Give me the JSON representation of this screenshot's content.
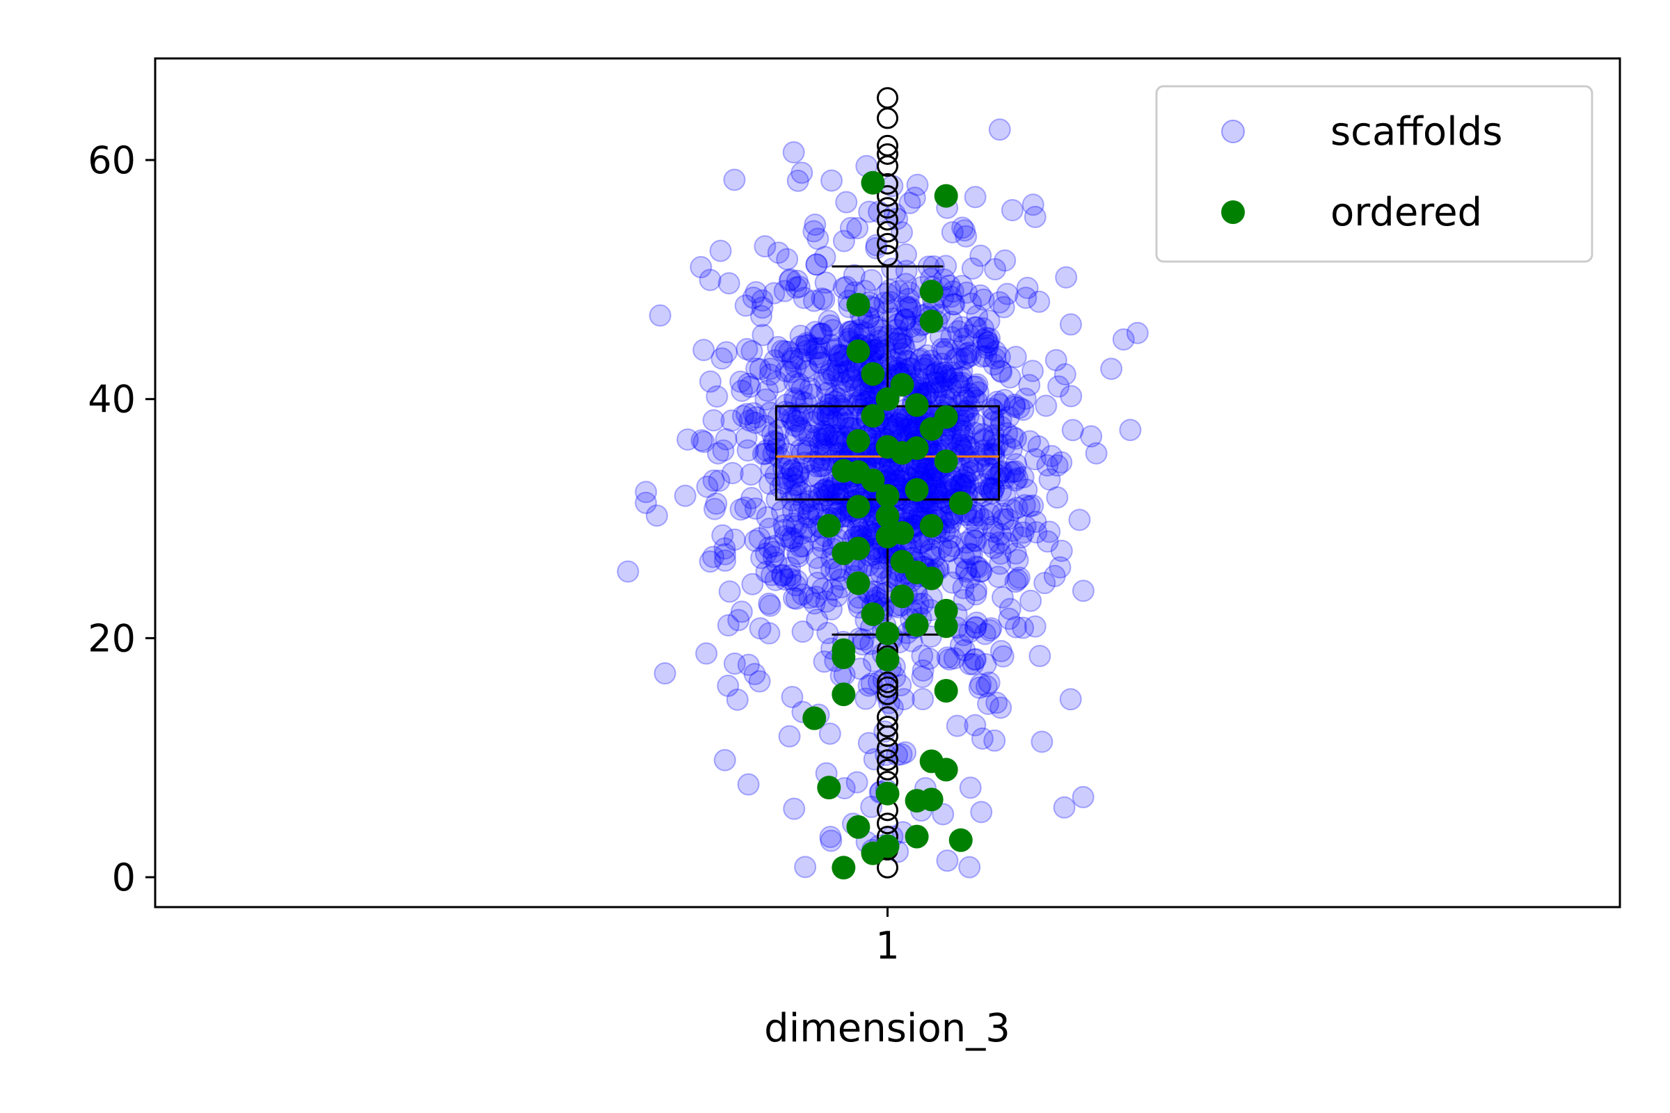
{
  "chart_data": {
    "type": "scatter",
    "xlabel": "dimension_3",
    "ylabel": "",
    "x_ticks": [
      "1"
    ],
    "y_ticks": [
      0,
      20,
      40,
      60
    ],
    "ylim": [
      -2.5,
      68.5
    ],
    "xlim": [
      0.5,
      1.5
    ],
    "grid": false,
    "legend": {
      "placement": "top-right",
      "entries": [
        {
          "label": "scaffolds",
          "color": "#0000ff"
        },
        {
          "label": "ordered",
          "color": "#008000"
        }
      ]
    },
    "boxplot": {
      "x": 1,
      "q1": 31.6,
      "median": 35.2,
      "q3": 39.4,
      "whisker_low": 20.3,
      "whisker_high": 51.1,
      "box_color": "#000000",
      "median_color": "#ff7f0e",
      "fliers": [
        0.8,
        2.3,
        3.4,
        4.5,
        5.6,
        7.0,
        8.0,
        9.0,
        9.8,
        10.8,
        11.8,
        12.6,
        13.4,
        15.3,
        15.9,
        16.3,
        18.5,
        19.0,
        52.0,
        53.0,
        54.0,
        55.0,
        56.0,
        57.0,
        58.0,
        59.5,
        60.5,
        61.2,
        63.5,
        65.2
      ]
    },
    "series": [
      {
        "name": "scaffolds",
        "color": "#0000ff",
        "count": 1500,
        "distribution": {
          "x_center": 1,
          "x_jitter": 0.07,
          "y_mean": 35.2,
          "y_sd": 8.5,
          "y_min": 0.8,
          "y_max": 65.2
        }
      },
      {
        "name": "ordered",
        "color": "#008000",
        "points": [
          [
            0.99,
            58.1
          ],
          [
            1.04,
            57.0
          ],
          [
            1.03,
            49.0
          ],
          [
            0.98,
            47.9
          ],
          [
            1.03,
            46.5
          ],
          [
            0.98,
            44.0
          ],
          [
            0.99,
            42.1
          ],
          [
            1.01,
            41.2
          ],
          [
            1.0,
            40.0
          ],
          [
            1.02,
            39.5
          ],
          [
            1.04,
            38.5
          ],
          [
            1.03,
            37.5
          ],
          [
            0.98,
            36.5
          ],
          [
            1.0,
            36.0
          ],
          [
            1.01,
            35.5
          ],
          [
            1.04,
            34.8
          ],
          [
            0.97,
            34.0
          ],
          [
            0.99,
            33.2
          ],
          [
            1.02,
            32.4
          ],
          [
            1.05,
            31.3
          ],
          [
            0.98,
            31.0
          ],
          [
            1.0,
            30.2
          ],
          [
            0.96,
            29.4
          ],
          [
            1.03,
            29.4
          ],
          [
            1.0,
            28.5
          ],
          [
            0.98,
            27.5
          ],
          [
            0.97,
            27.1
          ],
          [
            1.01,
            26.4
          ],
          [
            1.02,
            25.5
          ],
          [
            0.98,
            24.6
          ],
          [
            1.01,
            23.5
          ],
          [
            0.99,
            22.0
          ],
          [
            1.04,
            22.3
          ],
          [
            1.02,
            21.1
          ],
          [
            1.04,
            21.0
          ],
          [
            1.0,
            20.4
          ],
          [
            0.97,
            19.0
          ],
          [
            0.97,
            18.4
          ],
          [
            1.0,
            18.2
          ],
          [
            1.04,
            15.6
          ],
          [
            0.97,
            15.3
          ],
          [
            0.95,
            13.3
          ],
          [
            1.03,
            9.7
          ],
          [
            1.04,
            9.0
          ],
          [
            0.96,
            7.5
          ],
          [
            1.0,
            7.0
          ],
          [
            1.02,
            6.4
          ],
          [
            1.03,
            6.5
          ],
          [
            0.98,
            4.2
          ],
          [
            1.02,
            3.4
          ],
          [
            1.0,
            2.6
          ],
          [
            1.05,
            3.1
          ],
          [
            0.99,
            2.0
          ],
          [
            0.97,
            0.8
          ],
          [
            1.02,
            35.9
          ],
          [
            0.98,
            33.9
          ],
          [
            1.0,
            31.9
          ],
          [
            1.03,
            25.0
          ],
          [
            1.01,
            28.8
          ],
          [
            0.99,
            38.6
          ]
        ]
      }
    ]
  }
}
